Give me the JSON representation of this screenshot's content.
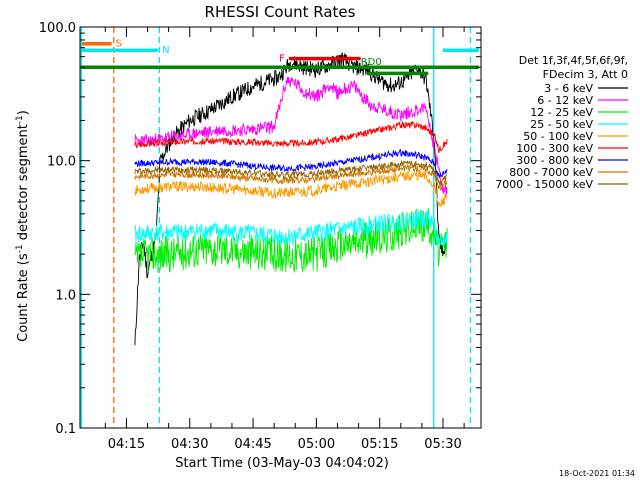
{
  "chart_data": {
    "type": "line",
    "title": "RHESSI Count Rates",
    "xlabel": "Start Time (03-May-03 04:04:02)",
    "ylabel_main": "Count Rate (s",
    "ylabel_sup1": "-1",
    "ylabel_mid": " detector segment",
    "ylabel_sup2": "-1",
    "ylabel_end": ")",
    "yscale": "log",
    "ylim": [
      0.1,
      100
    ],
    "xlim_minutes": [
      4.0,
      99.0
    ],
    "ytick_values": [
      0.1,
      1.0,
      10.0,
      100.0
    ],
    "ytick_labels": [
      "0.1",
      "1.0",
      "10.0",
      "100.0"
    ],
    "xtick_minutes": [
      15,
      30,
      45,
      60,
      75,
      90
    ],
    "xtick_labels": [
      "04:15",
      "04:30",
      "04:45",
      "05:00",
      "05:15",
      "05:30"
    ],
    "legend_header": [
      "Det 1f,3f,4f,5f,6f,9f,",
      "FDecim 3, Att 0"
    ],
    "legend_placement": "right",
    "footer_date": "18-Oct-2021 01:34",
    "series": [
      {
        "name": "3 - 6 keV",
        "color": "#000000",
        "seed": 11,
        "noise": 0.06,
        "points": [
          [
            17,
            0.4
          ],
          [
            18,
            1.8
          ],
          [
            19,
            2.5
          ],
          [
            20,
            1.4
          ],
          [
            21,
            2.0
          ],
          [
            22,
            2.6
          ],
          [
            23,
            10
          ],
          [
            26,
            15
          ],
          [
            30,
            20
          ],
          [
            35,
            24
          ],
          [
            40,
            30
          ],
          [
            45,
            36
          ],
          [
            49,
            40
          ],
          [
            51,
            42
          ],
          [
            54,
            55
          ],
          [
            57,
            50
          ],
          [
            60,
            48
          ],
          [
            63,
            52
          ],
          [
            66,
            58
          ],
          [
            69,
            50
          ],
          [
            72,
            48
          ],
          [
            75,
            40
          ],
          [
            78,
            36
          ],
          [
            81,
            40
          ],
          [
            84,
            50
          ],
          [
            86,
            40
          ],
          [
            88,
            14
          ],
          [
            89,
            2.5
          ],
          [
            90,
            2.0
          ],
          [
            91,
            3.0
          ]
        ]
      },
      {
        "name": "6 - 12 keV",
        "color": "#ff00ff",
        "seed": 23,
        "noise": 0.05,
        "points": [
          [
            17,
            14
          ],
          [
            20,
            14
          ],
          [
            26,
            15
          ],
          [
            32,
            16
          ],
          [
            38,
            17
          ],
          [
            44,
            17
          ],
          [
            50,
            18
          ],
          [
            53,
            40
          ],
          [
            55,
            38
          ],
          [
            57,
            33
          ],
          [
            60,
            30
          ],
          [
            63,
            37
          ],
          [
            65,
            32
          ],
          [
            67,
            35
          ],
          [
            69,
            36
          ],
          [
            71,
            30
          ],
          [
            73,
            26
          ],
          [
            76,
            24
          ],
          [
            80,
            22
          ],
          [
            84,
            24
          ],
          [
            86,
            25
          ],
          [
            88,
            12
          ],
          [
            90,
            6
          ],
          [
            91,
            6
          ]
        ]
      },
      {
        "name": "12 - 25 keV",
        "color": "#00ee00",
        "seed": 37,
        "noise": 0.14,
        "points": [
          [
            17,
            1.8
          ],
          [
            20,
            2.0
          ],
          [
            26,
            2.0
          ],
          [
            32,
            2.2
          ],
          [
            38,
            2.2
          ],
          [
            44,
            2.1
          ],
          [
            50,
            2.0
          ],
          [
            55,
            2.0
          ],
          [
            60,
            2.0
          ],
          [
            65,
            2.3
          ],
          [
            70,
            2.5
          ],
          [
            75,
            2.7
          ],
          [
            80,
            3.0
          ],
          [
            84,
            3.3
          ],
          [
            86,
            3.4
          ],
          [
            88,
            3.0
          ],
          [
            89,
            2.0
          ],
          [
            91,
            2.5
          ]
        ]
      },
      {
        "name": "25 - 50 keV",
        "color": "#00ffff",
        "seed": 41,
        "noise": 0.07,
        "points": [
          [
            17,
            2.8
          ],
          [
            22,
            2.9
          ],
          [
            28,
            2.9
          ],
          [
            34,
            3.0
          ],
          [
            40,
            2.9
          ],
          [
            46,
            2.8
          ],
          [
            52,
            2.7
          ],
          [
            58,
            2.8
          ],
          [
            64,
            3.0
          ],
          [
            70,
            3.2
          ],
          [
            76,
            3.4
          ],
          [
            82,
            3.6
          ],
          [
            86,
            3.7
          ],
          [
            88,
            3.4
          ],
          [
            89,
            2.2
          ],
          [
            91,
            2.8
          ]
        ]
      },
      {
        "name": "50 - 100 keV",
        "color": "#ff9900",
        "seed": 53,
        "noise": 0.04,
        "points": [
          [
            17,
            6.0
          ],
          [
            20,
            6.2
          ],
          [
            26,
            6.4
          ],
          [
            32,
            6.4
          ],
          [
            38,
            6.2
          ],
          [
            44,
            6.0
          ],
          [
            50,
            5.7
          ],
          [
            55,
            5.8
          ],
          [
            60,
            6.0
          ],
          [
            65,
            6.4
          ],
          [
            70,
            6.8
          ],
          [
            75,
            7.2
          ],
          [
            80,
            7.6
          ],
          [
            84,
            7.8
          ],
          [
            86,
            7.6
          ],
          [
            88,
            6.5
          ],
          [
            89,
            4.5
          ],
          [
            91,
            5.5
          ]
        ]
      },
      {
        "name": "100 - 300 keV",
        "color": "#ff0000",
        "seed": 67,
        "noise": 0.025,
        "points": [
          [
            17,
            13
          ],
          [
            20,
            13.5
          ],
          [
            26,
            13.8
          ],
          [
            32,
            14
          ],
          [
            38,
            14
          ],
          [
            44,
            13.8
          ],
          [
            50,
            13.5
          ],
          [
            55,
            13.5
          ],
          [
            60,
            13.8
          ],
          [
            65,
            14.5
          ],
          [
            70,
            15.5
          ],
          [
            75,
            17
          ],
          [
            80,
            18.5
          ],
          [
            84,
            18.5
          ],
          [
            86,
            17.5
          ],
          [
            88,
            15.5
          ],
          [
            89,
            12
          ],
          [
            91,
            14
          ]
        ]
      },
      {
        "name": "300 - 800 keV",
        "color": "#0000ff",
        "seed": 79,
        "noise": 0.025,
        "points": [
          [
            17,
            9.5
          ],
          [
            20,
            9.6
          ],
          [
            26,
            9.8
          ],
          [
            32,
            9.8
          ],
          [
            38,
            9.6
          ],
          [
            44,
            9.2
          ],
          [
            50,
            8.8
          ],
          [
            55,
            8.8
          ],
          [
            60,
            9.0
          ],
          [
            65,
            9.6
          ],
          [
            70,
            10.2
          ],
          [
            75,
            10.8
          ],
          [
            80,
            11.5
          ],
          [
            84,
            11.0
          ],
          [
            86,
            10.5
          ],
          [
            88,
            9.5
          ],
          [
            89,
            7.5
          ],
          [
            91,
            8.5
          ]
        ]
      },
      {
        "name": "800 - 7000 keV",
        "color": "#cc7700",
        "seed": 83,
        "noise": 0.025,
        "points": [
          [
            17,
            7.6
          ],
          [
            22,
            7.8
          ],
          [
            28,
            7.9
          ],
          [
            34,
            7.8
          ],
          [
            40,
            7.6
          ],
          [
            46,
            7.3
          ],
          [
            52,
            7.1
          ],
          [
            58,
            7.2
          ],
          [
            64,
            7.6
          ],
          [
            70,
            8.0
          ],
          [
            76,
            8.4
          ],
          [
            82,
            8.8
          ],
          [
            86,
            8.6
          ],
          [
            88,
            7.8
          ],
          [
            89,
            6.2
          ],
          [
            91,
            7.0
          ]
        ]
      },
      {
        "name": "7000 - 15000 keV",
        "color": "#996600",
        "seed": 97,
        "noise": 0.025,
        "points": [
          [
            17,
            8.3
          ],
          [
            22,
            8.5
          ],
          [
            28,
            8.6
          ],
          [
            34,
            8.5
          ],
          [
            40,
            8.3
          ],
          [
            46,
            8.0
          ],
          [
            52,
            7.8
          ],
          [
            58,
            7.9
          ],
          [
            64,
            8.3
          ],
          [
            70,
            8.7
          ],
          [
            76,
            9.1
          ],
          [
            82,
            9.5
          ],
          [
            86,
            9.3
          ],
          [
            88,
            8.4
          ],
          [
            89,
            6.8
          ],
          [
            91,
            7.6
          ]
        ]
      }
    ],
    "flag_bars": [
      {
        "label": "S",
        "color": "#ff6600",
        "x0": 4.5,
        "x1": 11.5,
        "y": 75
      },
      {
        "label": "N",
        "color": "#00e5ee",
        "x0": 4.2,
        "x1": 22.5,
        "y": 67
      },
      {
        "label": "F",
        "color": "#ee0000",
        "x0": 53.5,
        "x1": 70.5,
        "y": 58
      },
      {
        "label": "RD0",
        "color": "#008800",
        "x0": 4.2,
        "x1": 98.5,
        "y": 50
      },
      {
        "label": "",
        "color": "#008800",
        "x0": 72.0,
        "x1": 86.5,
        "y": 45
      },
      {
        "label": "",
        "color": "#00e5ee",
        "x0": 90.0,
        "x1": 98.5,
        "y": 67
      }
    ],
    "vertical_lines": [
      {
        "x": 12.0,
        "color": "#ff6600",
        "style": "dashed"
      },
      {
        "x": 22.8,
        "color": "#00e5ee",
        "style": "dashed"
      },
      {
        "x": 4.3,
        "color": "#00e5ee",
        "style": "solid"
      },
      {
        "x": 87.8,
        "color": "#00e5ee",
        "style": "solid"
      },
      {
        "x": 96.5,
        "color": "#00e5ee",
        "style": "dashed"
      }
    ]
  }
}
